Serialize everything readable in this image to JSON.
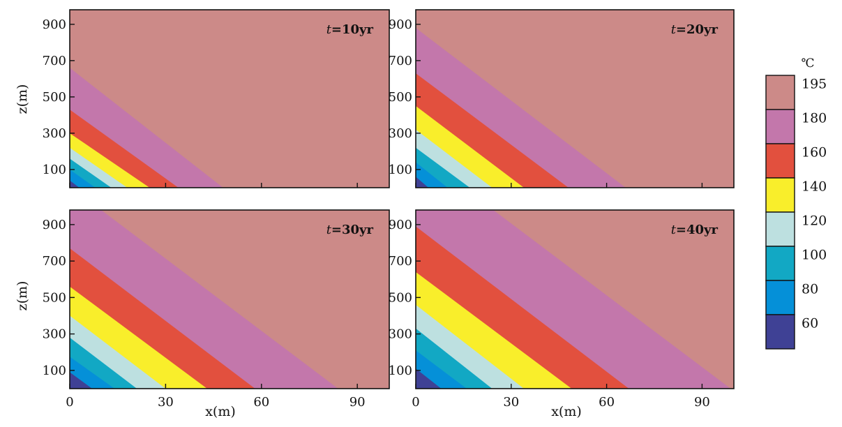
{
  "figure": {
    "colorbar_unit": "℃",
    "xlabel": "x(m)",
    "ylabel": "z(m)"
  },
  "chart_data": {
    "type": "contour",
    "xlim": [
      0,
      100
    ],
    "ylim": [
      0,
      980
    ],
    "xticks": [
      0,
      30,
      60,
      90
    ],
    "yticks": [
      100,
      300,
      500,
      700,
      900
    ],
    "legend": {
      "unit": "℃",
      "levels": [
        195,
        180,
        160,
        140,
        120,
        100,
        80,
        60
      ],
      "colors": {
        "195": "#cc8a88",
        "180": "#c377ab",
        "160": "#e2503e",
        "140": "#f9ee2b",
        "120": "#bde0e0",
        "100": "#12a8c4",
        "80": "#0590d8",
        "60": "#3f4195"
      }
    },
    "panels": [
      {
        "label_t": "t",
        "label_rest": "=10yr",
        "contours": [
          {
            "level": 180,
            "x_at_z0": 48,
            "z_at_x0": 660
          },
          {
            "level": 160,
            "x_at_z0": 34,
            "z_at_x0": 430
          },
          {
            "level": 140,
            "x_at_z0": 25,
            "z_at_x0": 300
          },
          {
            "level": 120,
            "x_at_z0": 18,
            "z_at_x0": 220
          },
          {
            "level": 100,
            "x_at_z0": 13,
            "z_at_x0": 160
          },
          {
            "level": 80,
            "x_at_z0": 8,
            "z_at_x0": 100
          },
          {
            "level": 60,
            "x_at_z0": 3,
            "z_at_x0": 40
          }
        ]
      },
      {
        "label_t": "t",
        "label_rest": "=20yr",
        "contours": [
          {
            "level": 180,
            "x_at_z0": 66,
            "z_at_x0": 880
          },
          {
            "level": 160,
            "x_at_z0": 48,
            "z_at_x0": 630
          },
          {
            "level": 140,
            "x_at_z0": 34,
            "z_at_x0": 450
          },
          {
            "level": 120,
            "x_at_z0": 24,
            "z_at_x0": 320
          },
          {
            "level": 100,
            "x_at_z0": 17,
            "z_at_x0": 220
          },
          {
            "level": 80,
            "x_at_z0": 10,
            "z_at_x0": 140
          },
          {
            "level": 60,
            "x_at_z0": 4,
            "z_at_x0": 60
          }
        ]
      },
      {
        "label_t": "t",
        "label_rest": "=30yr",
        "contours": [
          {
            "level": 180,
            "x_at_z0": 84,
            "z_at_x0": 1110
          },
          {
            "level": 160,
            "x_at_z0": 58,
            "z_at_x0": 770
          },
          {
            "level": 140,
            "x_at_z0": 43,
            "z_at_x0": 560
          },
          {
            "level": 120,
            "x_at_z0": 30,
            "z_at_x0": 400
          },
          {
            "level": 100,
            "x_at_z0": 21,
            "z_at_x0": 280
          },
          {
            "level": 80,
            "x_at_z0": 14,
            "z_at_x0": 175
          },
          {
            "level": 60,
            "x_at_z0": 7,
            "z_at_x0": 90
          }
        ]
      },
      {
        "label_t": "t",
        "label_rest": "=40yr",
        "contours": [
          {
            "level": 180,
            "x_at_z0": 99,
            "z_at_x0": 1300
          },
          {
            "level": 160,
            "x_at_z0": 67,
            "z_at_x0": 890
          },
          {
            "level": 140,
            "x_at_z0": 49,
            "z_at_x0": 640
          },
          {
            "level": 120,
            "x_at_z0": 34,
            "z_at_x0": 460
          },
          {
            "level": 100,
            "x_at_z0": 24,
            "z_at_x0": 330
          },
          {
            "level": 80,
            "x_at_z0": 16,
            "z_at_x0": 210
          },
          {
            "level": 60,
            "x_at_z0": 8,
            "z_at_x0": 110
          }
        ]
      }
    ]
  }
}
